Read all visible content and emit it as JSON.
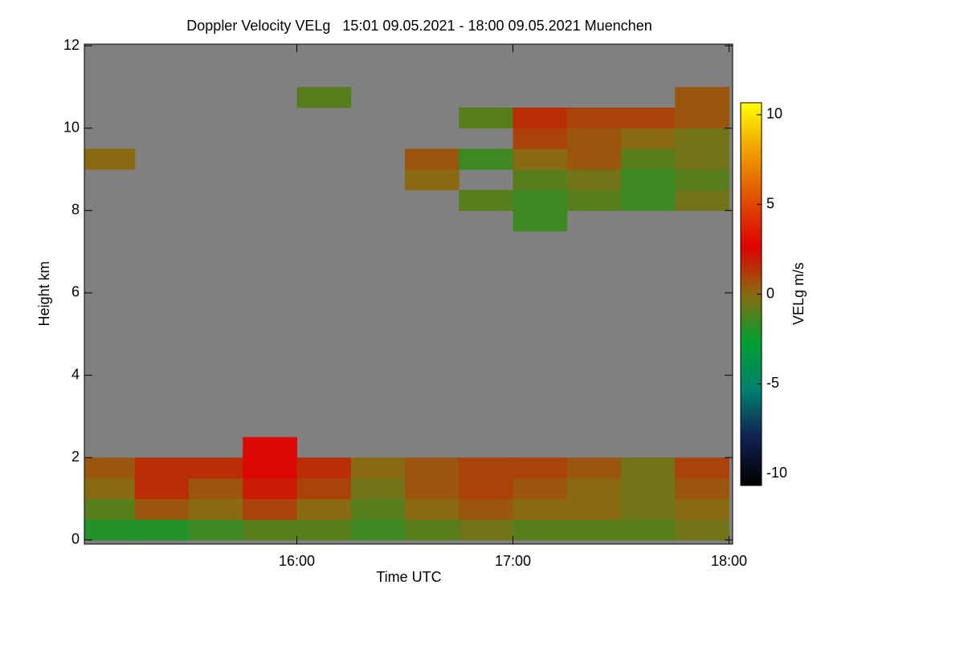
{
  "chart_data": {
    "type": "heatmap",
    "title": "Doppler Velocity VELg   15:01 09.05.2021 - 18:00 09.05.2021 Muenchen",
    "x_label": "Time UTC",
    "y_label": "Height km",
    "colorbar_label": "VELg m/s",
    "x": [
      15.125,
      15.375,
      15.625,
      15.875,
      16.125,
      16.375,
      16.625,
      16.875,
      17.125,
      17.375,
      17.625,
      17.875
    ],
    "y": [
      0.25,
      0.75,
      1.25,
      1.75,
      2.25,
      2.75,
      3.25,
      3.75,
      4.25,
      4.75,
      5.25,
      5.75,
      6.25,
      6.75,
      7.25,
      7.75,
      8.25,
      8.75,
      9.25,
      9.75,
      10.25,
      10.75,
      11.25,
      11.75
    ],
    "z": [
      [
        -2,
        -2,
        -1.5,
        -1,
        -1,
        -1.5,
        -1,
        -0.5,
        -1,
        -1,
        -1,
        -0.5
      ],
      [
        -1,
        0.5,
        0,
        1,
        0,
        -1,
        0,
        0.5,
        0,
        0,
        -0.5,
        0
      ],
      [
        0,
        1.5,
        0.5,
        2,
        1,
        -0.5,
        0.5,
        1,
        0.5,
        0,
        -0.5,
        0.5
      ],
      [
        0.5,
        1.5,
        1.5,
        2.5,
        1.5,
        0,
        0.5,
        1,
        1,
        0.5,
        -0.5,
        1
      ],
      [
        null,
        null,
        null,
        2.5,
        null,
        null,
        null,
        null,
        null,
        null,
        null,
        null
      ],
      [
        null,
        null,
        null,
        null,
        null,
        null,
        null,
        null,
        null,
        null,
        null,
        null
      ],
      [
        null,
        null,
        null,
        null,
        null,
        null,
        null,
        null,
        null,
        null,
        null,
        null
      ],
      [
        null,
        null,
        null,
        null,
        null,
        null,
        null,
        null,
        null,
        null,
        null,
        null
      ],
      [
        null,
        null,
        null,
        null,
        null,
        null,
        null,
        null,
        null,
        null,
        null,
        null
      ],
      [
        null,
        null,
        null,
        null,
        null,
        null,
        null,
        null,
        null,
        null,
        null,
        null
      ],
      [
        null,
        null,
        null,
        null,
        null,
        null,
        null,
        null,
        null,
        null,
        null,
        null
      ],
      [
        null,
        null,
        null,
        null,
        null,
        null,
        null,
        null,
        null,
        null,
        null,
        null
      ],
      [
        null,
        null,
        null,
        null,
        null,
        null,
        null,
        null,
        null,
        null,
        null,
        null
      ],
      [
        null,
        null,
        null,
        null,
        null,
        null,
        null,
        null,
        null,
        null,
        null,
        null
      ],
      [
        null,
        null,
        null,
        null,
        null,
        null,
        null,
        null,
        null,
        null,
        null,
        null
      ],
      [
        null,
        null,
        null,
        null,
        null,
        null,
        null,
        null,
        -1.5,
        null,
        null,
        null
      ],
      [
        null,
        null,
        null,
        null,
        null,
        null,
        null,
        -1,
        -1.5,
        -1,
        -1.5,
        -0.5
      ],
      [
        null,
        null,
        null,
        null,
        null,
        null,
        0,
        null,
        -1,
        -0.5,
        -1.5,
        -1
      ],
      [
        0,
        null,
        null,
        null,
        null,
        null,
        0.5,
        -1.5,
        0,
        0.5,
        -1,
        -0.5
      ],
      [
        null,
        null,
        null,
        null,
        null,
        null,
        null,
        null,
        1,
        0.5,
        0,
        -0.5
      ],
      [
        null,
        null,
        null,
        null,
        null,
        null,
        null,
        -1,
        1.5,
        1,
        1,
        0.5
      ],
      [
        null,
        null,
        null,
        null,
        -1,
        null,
        null,
        null,
        null,
        null,
        null,
        0.5
      ],
      [
        null,
        null,
        null,
        null,
        null,
        null,
        null,
        null,
        null,
        null,
        null,
        null
      ],
      [
        null,
        null,
        null,
        null,
        null,
        null,
        null,
        null,
        null,
        null,
        null,
        null
      ]
    ],
    "background_color": "#808080",
    "colorscale": [
      "#000000",
      "#102050",
      "#008070",
      "#00a030",
      "#8a6a10",
      "#e00000",
      "#e05000",
      "#f0a000",
      "#ffff00"
    ],
    "xlim": [
      15.0167,
      18.0167
    ],
    "xticks": [
      {
        "value": 16,
        "label": "16:00"
      },
      {
        "value": 17,
        "label": "17:00"
      },
      {
        "value": 18,
        "label": "18:00"
      }
    ],
    "ylim": [
      -0.1,
      12.04
    ],
    "yticks": [
      0,
      2,
      4,
      6,
      8,
      10,
      12
    ],
    "clim": [
      -10.67,
      10.67
    ],
    "cticks": [
      -10,
      -5,
      0,
      5,
      10
    ]
  }
}
